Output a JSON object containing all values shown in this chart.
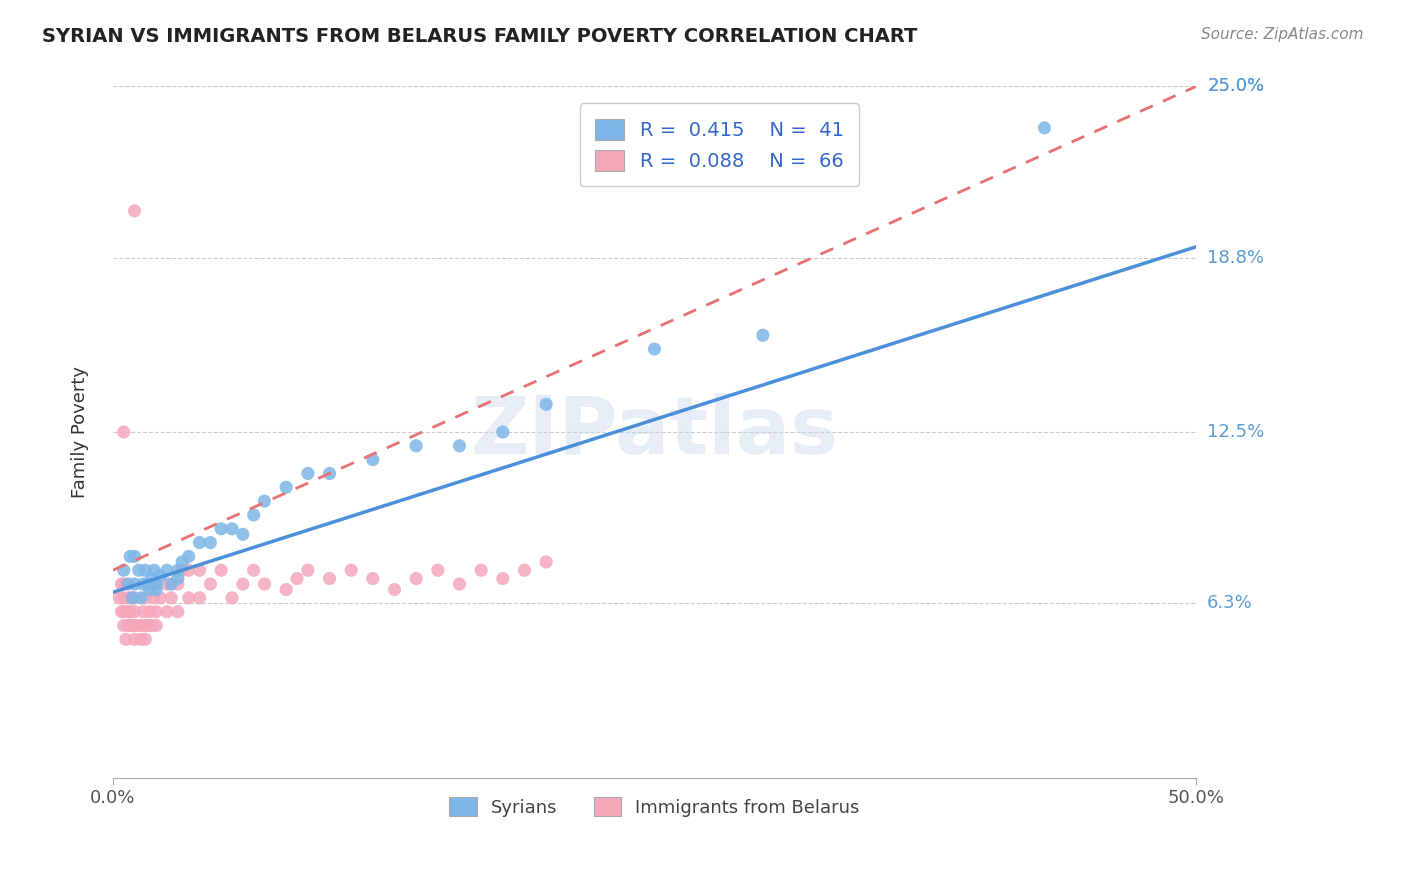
{
  "title": "SYRIAN VS IMMIGRANTS FROM BELARUS FAMILY POVERTY CORRELATION CHART",
  "source": "Source: ZipAtlas.com",
  "ylabel": "Family Poverty",
  "x_min": 0.0,
  "x_max": 0.5,
  "y_min": 0.0,
  "y_max": 0.25,
  "x_tick_labels": [
    "0.0%",
    "50.0%"
  ],
  "x_tick_vals": [
    0.0,
    0.5
  ],
  "y_tick_labels": [
    "25.0%",
    "18.8%",
    "12.5%",
    "6.3%"
  ],
  "y_tick_vals": [
    0.25,
    0.188,
    0.125,
    0.063
  ],
  "legend1_label": "R =  0.415    N =  41",
  "legend2_label": "R =  0.088    N =  66",
  "color_syrian": "#7EB6E8",
  "color_belarus": "#F4A7B9",
  "color_line_syrian": "#4A90D9",
  "color_line_belarus": "#E87070",
  "watermark": "ZIPatlas",
  "legend_bottom1": "Syrians",
  "legend_bottom2": "Immigrants from Belarus",
  "syrian_line_x0": 0.0,
  "syrian_line_y0": 0.067,
  "syrian_line_x1": 0.5,
  "syrian_line_y1": 0.192,
  "belarus_line_x0": 0.0,
  "belarus_line_y0": 0.075,
  "belarus_line_x1": 0.5,
  "belarus_line_y1": 0.25,
  "syrian_scatter_x": [
    0.005,
    0.007,
    0.008,
    0.009,
    0.01,
    0.01,
    0.012,
    0.013,
    0.014,
    0.015,
    0.016,
    0.017,
    0.018,
    0.019,
    0.02,
    0.02,
    0.022,
    0.025,
    0.027,
    0.03,
    0.03,
    0.032,
    0.035,
    0.04,
    0.045,
    0.05,
    0.055,
    0.06,
    0.065,
    0.07,
    0.08,
    0.09,
    0.1,
    0.12,
    0.14,
    0.16,
    0.18,
    0.2,
    0.25,
    0.3,
    0.43
  ],
  "syrian_scatter_y": [
    0.075,
    0.07,
    0.08,
    0.065,
    0.07,
    0.08,
    0.075,
    0.065,
    0.07,
    0.075,
    0.07,
    0.068,
    0.072,
    0.075,
    0.068,
    0.07,
    0.073,
    0.075,
    0.07,
    0.072,
    0.075,
    0.078,
    0.08,
    0.085,
    0.085,
    0.09,
    0.09,
    0.088,
    0.095,
    0.1,
    0.105,
    0.11,
    0.11,
    0.115,
    0.12,
    0.12,
    0.125,
    0.135,
    0.155,
    0.16,
    0.235
  ],
  "belarus_scatter_x": [
    0.003,
    0.004,
    0.004,
    0.005,
    0.005,
    0.005,
    0.005,
    0.005,
    0.006,
    0.007,
    0.007,
    0.007,
    0.008,
    0.008,
    0.009,
    0.009,
    0.01,
    0.01,
    0.01,
    0.01,
    0.01,
    0.012,
    0.013,
    0.013,
    0.014,
    0.015,
    0.015,
    0.015,
    0.016,
    0.017,
    0.018,
    0.019,
    0.02,
    0.02,
    0.02,
    0.022,
    0.025,
    0.025,
    0.027,
    0.03,
    0.03,
    0.032,
    0.035,
    0.035,
    0.04,
    0.04,
    0.045,
    0.05,
    0.055,
    0.06,
    0.065,
    0.07,
    0.08,
    0.085,
    0.09,
    0.1,
    0.11,
    0.12,
    0.13,
    0.14,
    0.15,
    0.16,
    0.17,
    0.18,
    0.19,
    0.2
  ],
  "belarus_scatter_y": [
    0.065,
    0.06,
    0.07,
    0.055,
    0.06,
    0.065,
    0.07,
    0.125,
    0.05,
    0.055,
    0.06,
    0.065,
    0.055,
    0.06,
    0.055,
    0.065,
    0.05,
    0.055,
    0.06,
    0.065,
    0.205,
    0.055,
    0.05,
    0.055,
    0.06,
    0.05,
    0.055,
    0.065,
    0.055,
    0.06,
    0.055,
    0.065,
    0.055,
    0.06,
    0.07,
    0.065,
    0.06,
    0.07,
    0.065,
    0.06,
    0.07,
    0.075,
    0.065,
    0.075,
    0.065,
    0.075,
    0.07,
    0.075,
    0.065,
    0.07,
    0.075,
    0.07,
    0.068,
    0.072,
    0.075,
    0.072,
    0.075,
    0.072,
    0.068,
    0.072,
    0.075,
    0.07,
    0.075,
    0.072,
    0.075,
    0.078
  ]
}
